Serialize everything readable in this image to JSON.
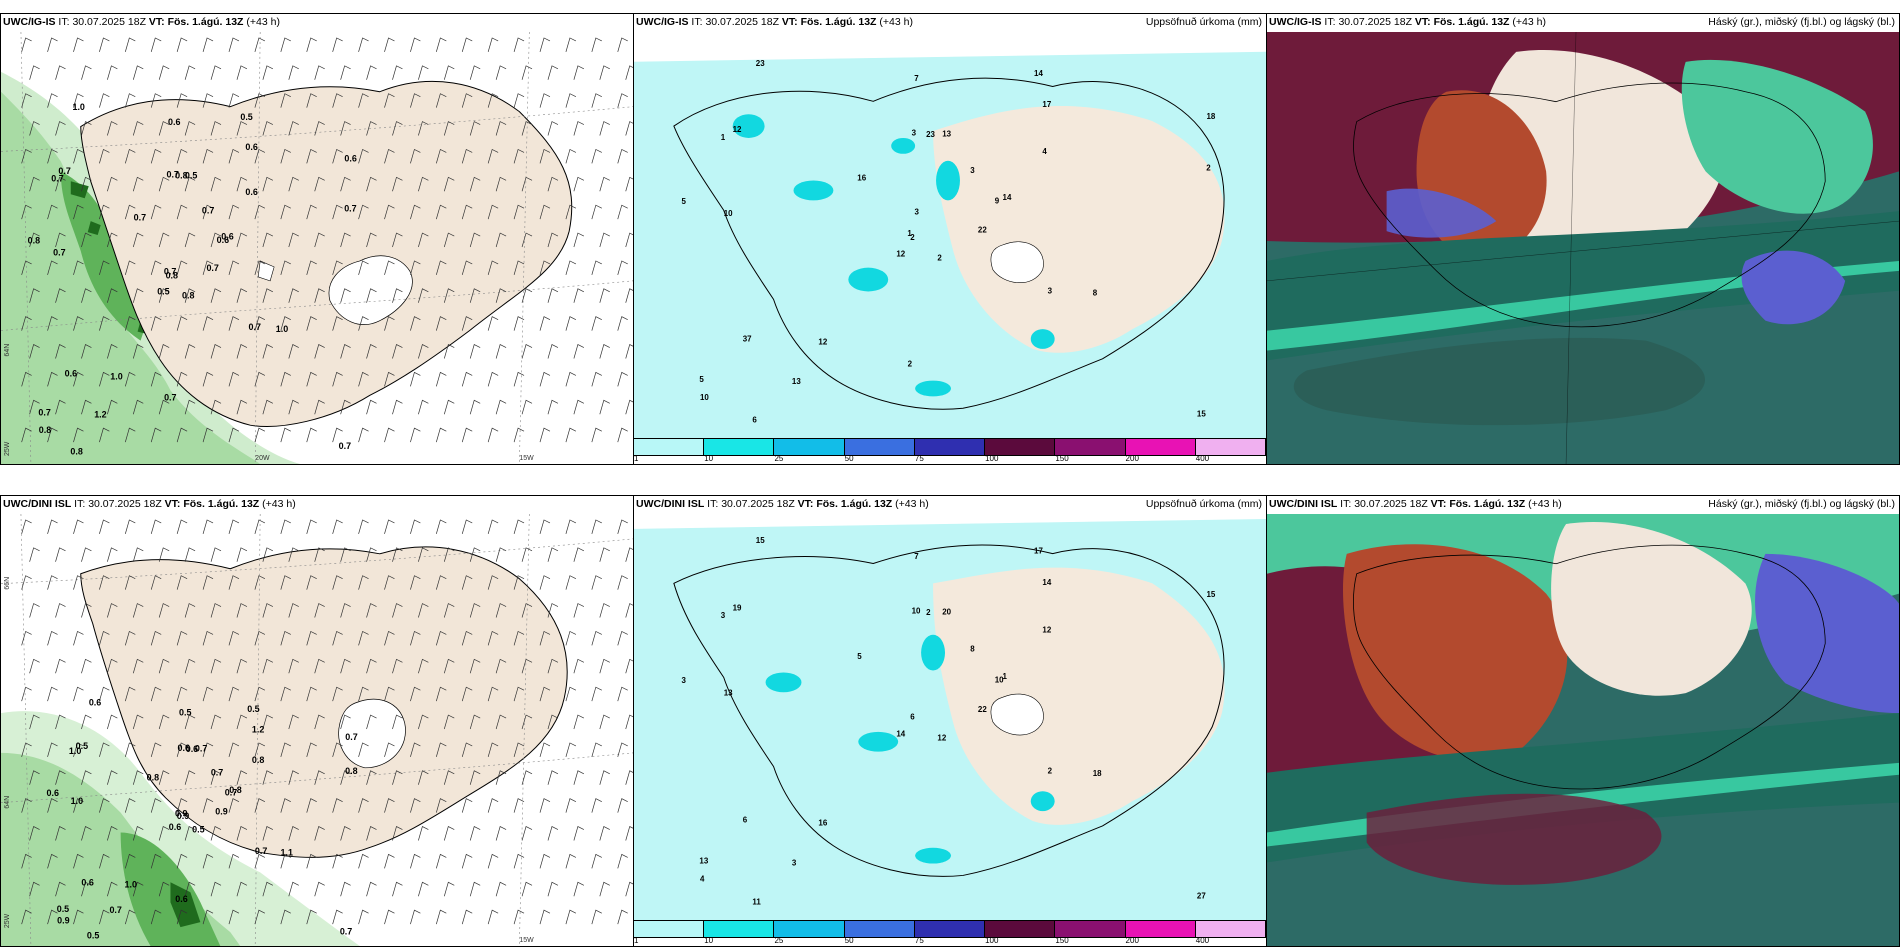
{
  "panels": [
    {
      "model": "UWC/IG-IS",
      "it_label": "IT:",
      "it_value": "30.07.2025 18Z",
      "vt_label": "VT:",
      "vt_value": "Fös. 1.ágú. 13Z",
      "lead": "(+43 h)",
      "right_title": "",
      "kind": "wind"
    },
    {
      "model": "UWC/IG-IS",
      "it_label": "IT:",
      "it_value": "30.07.2025 18Z",
      "vt_label": "VT:",
      "vt_value": "Fös. 1.ágú. 13Z",
      "lead": "(+43 h)",
      "right_title": "Uppsöfnuð úrkoma (mm)",
      "kind": "precip"
    },
    {
      "model": "UWC/IG-IS",
      "it_label": "IT:",
      "it_value": "30.07.2025 18Z",
      "vt_label": "VT:",
      "vt_value": "Fös. 1.ágú. 13Z",
      "lead": "(+43 h)",
      "right_title": "Háský (gr.), miðský (fj.bl.) og lágský (bl.)",
      "kind": "cloud"
    },
    {
      "model": "UWC/DINI ISL",
      "it_label": "IT:",
      "it_value": "30.07.2025 18Z",
      "vt_label": "VT:",
      "vt_value": "Fös. 1.ágú. 13Z",
      "lead": "(+43 h)",
      "right_title": "",
      "kind": "wind"
    },
    {
      "model": "UWC/DINI ISL",
      "it_label": "IT:",
      "it_value": "30.07.2025 18Z",
      "vt_label": "VT:",
      "vt_value": "Fös. 1.ágú. 13Z",
      "lead": "(+43 h)",
      "right_title": "Uppsöfnuð úrkoma (mm)",
      "kind": "precip"
    },
    {
      "model": "UWC/DINI ISL",
      "it_label": "IT:",
      "it_value": "30.07.2025 18Z",
      "vt_label": "VT:",
      "vt_value": "Fös. 1.ágú. 13Z",
      "lead": "(+43 h)",
      "right_title": "Háský (gr.), miðský (fj.bl.) og lágský (bl.)",
      "kind": "cloud"
    }
  ],
  "grid_labels": {
    "lat_66": "66N",
    "lat_64": "64N",
    "lat_65": "65N",
    "lon_25": "25W",
    "lon_20": "20W",
    "lon_15": "15W"
  },
  "colorbar": {
    "colors": [
      "#b8f7f7",
      "#19e6e6",
      "#12bde8",
      "#3a6fe0",
      "#2f2fb0",
      "#5b0a3c",
      "#8a1070",
      "#e812b4",
      "#f0b0f0"
    ],
    "labels": [
      "1",
      "10",
      "25",
      "50",
      "75",
      "100",
      "150",
      "200",
      "400"
    ]
  },
  "wind_values_top": [
    "0.8",
    "0.7",
    "0.8",
    "0.7",
    "0.6",
    "1.0",
    "0.5",
    "0.5",
    "0.6",
    "0.7",
    "1.0",
    "0.7",
    "0.7",
    "0.6",
    "0.5",
    "0.6",
    "0.8",
    "0.7",
    "0.7",
    "0.6",
    "0.7",
    "0.8",
    "1.2",
    "0.8",
    "0.6",
    "1.0",
    "0.7",
    "0.6",
    "0.8",
    "0.7",
    "0.7",
    "0.7",
    "0.7"
  ],
  "wind_values_bottom": [
    "0.5",
    "1.0",
    "0.9",
    "0.5",
    "0.7",
    "1.0",
    "0.5",
    "0.7",
    "1.2",
    "0.9",
    "0.6",
    "0.7",
    "1.0",
    "0.7",
    "0.6",
    "0.8",
    "0.5",
    "0.6",
    "0.7",
    "0.6",
    "0.8",
    "0.9",
    "0.7",
    "0.6",
    "0.8",
    "1.1",
    "0.5",
    "0.5",
    "0.6",
    "0.7",
    "0.8",
    "0.9",
    "0.6"
  ],
  "precip_values_top": [
    "2",
    "1",
    "2",
    "5",
    "9",
    "12",
    "14",
    "13",
    "17",
    "22",
    "23",
    "15",
    "10",
    "18",
    "12",
    "4",
    "6",
    "3",
    "3",
    "37",
    "16",
    "10",
    "13",
    "23",
    "14",
    "8",
    "12",
    "7",
    "5",
    "3",
    "2",
    "1",
    "2",
    "3"
  ],
  "precip_values_bottom": [
    "12",
    "3",
    "6",
    "13",
    "10",
    "16",
    "17",
    "20",
    "14",
    "22",
    "15",
    "27",
    "13",
    "15",
    "14",
    "12",
    "11",
    "10",
    "8",
    "6",
    "5",
    "4",
    "3",
    "2",
    "1",
    "18",
    "19",
    "7",
    "3",
    "2"
  ]
}
